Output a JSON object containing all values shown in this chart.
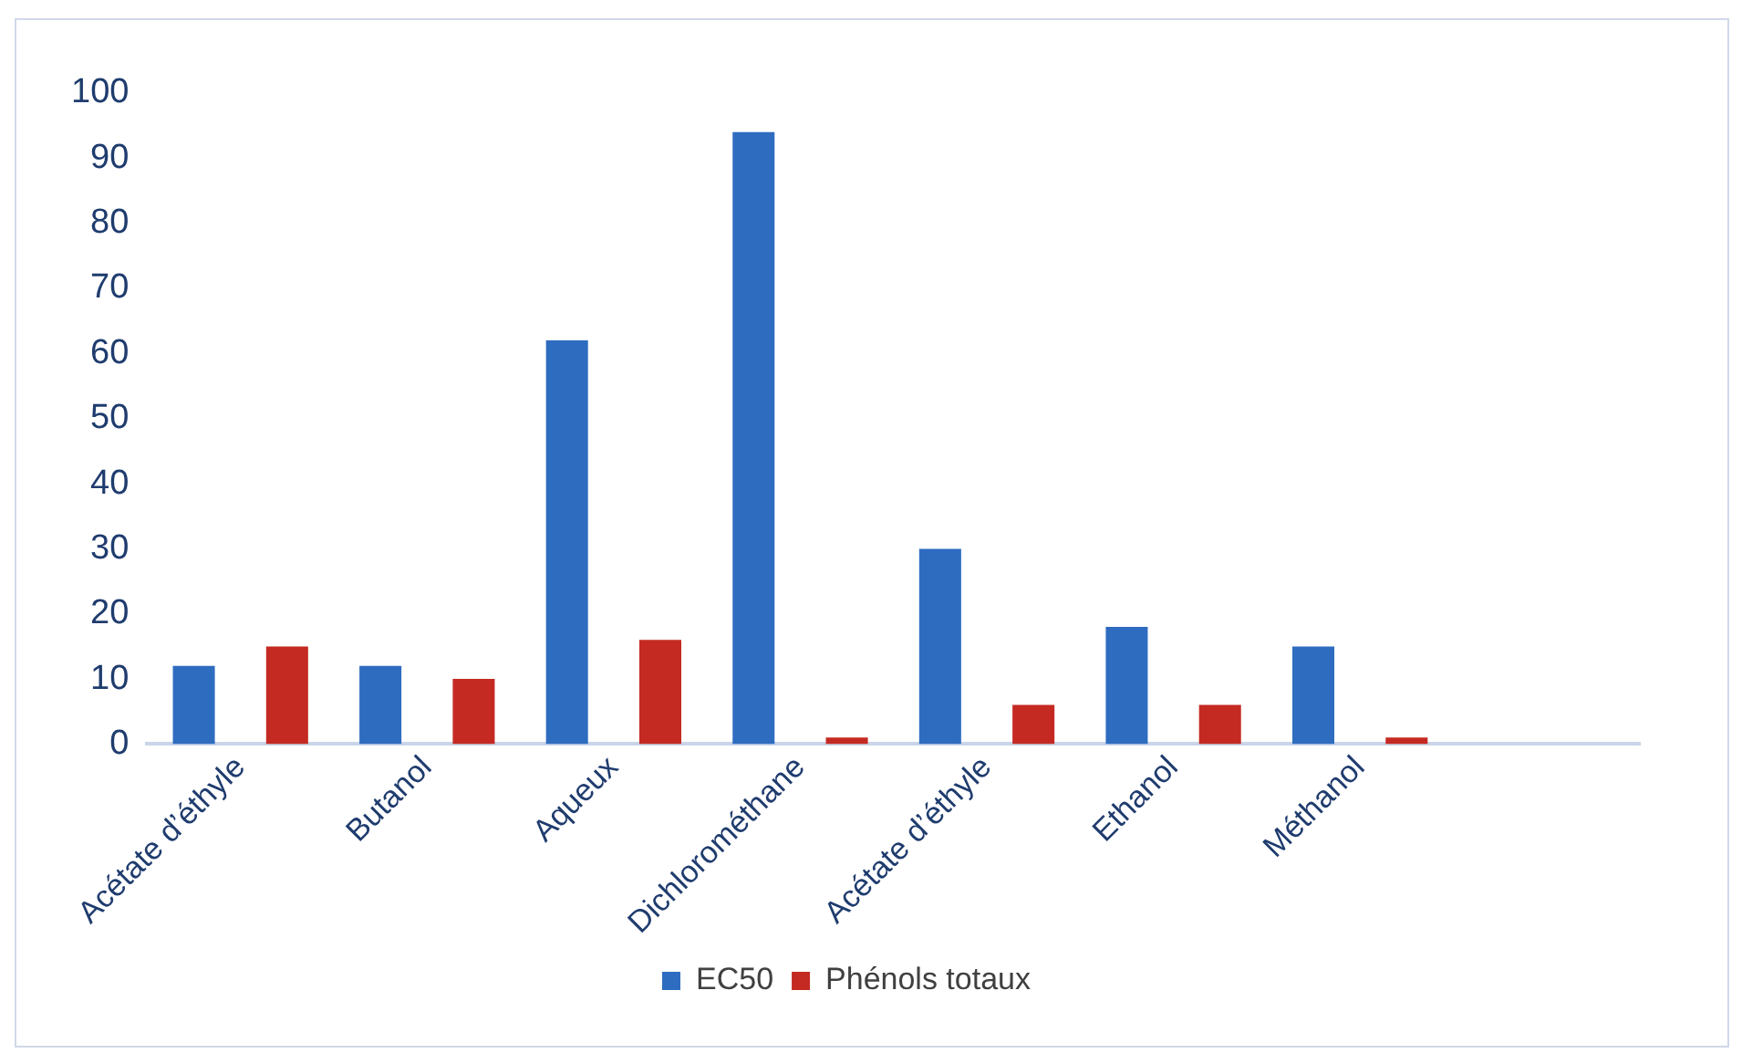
{
  "chart_data": {
    "type": "bar",
    "categories": [
      "Acétate d’éthyle",
      "Butanol",
      "Aqueux",
      "Dichlorométhane",
      "Acétate d’éthyle",
      "Ethanol",
      "Méthanol",
      null
    ],
    "series": [
      {
        "name": "EC50",
        "color": "#2e6cc0",
        "values": [
          12,
          12,
          62,
          94,
          30,
          18,
          15,
          null
        ]
      },
      {
        "name": "Phénols totaux",
        "color": "#c42a22",
        "values": [
          15,
          10,
          16,
          1,
          6,
          6,
          1,
          null
        ]
      }
    ],
    "ylim": [
      0,
      100
    ],
    "yticks": [
      0,
      10,
      20,
      30,
      40,
      50,
      60,
      70,
      80,
      90,
      100
    ],
    "grid": false,
    "legend": "bottom"
  }
}
